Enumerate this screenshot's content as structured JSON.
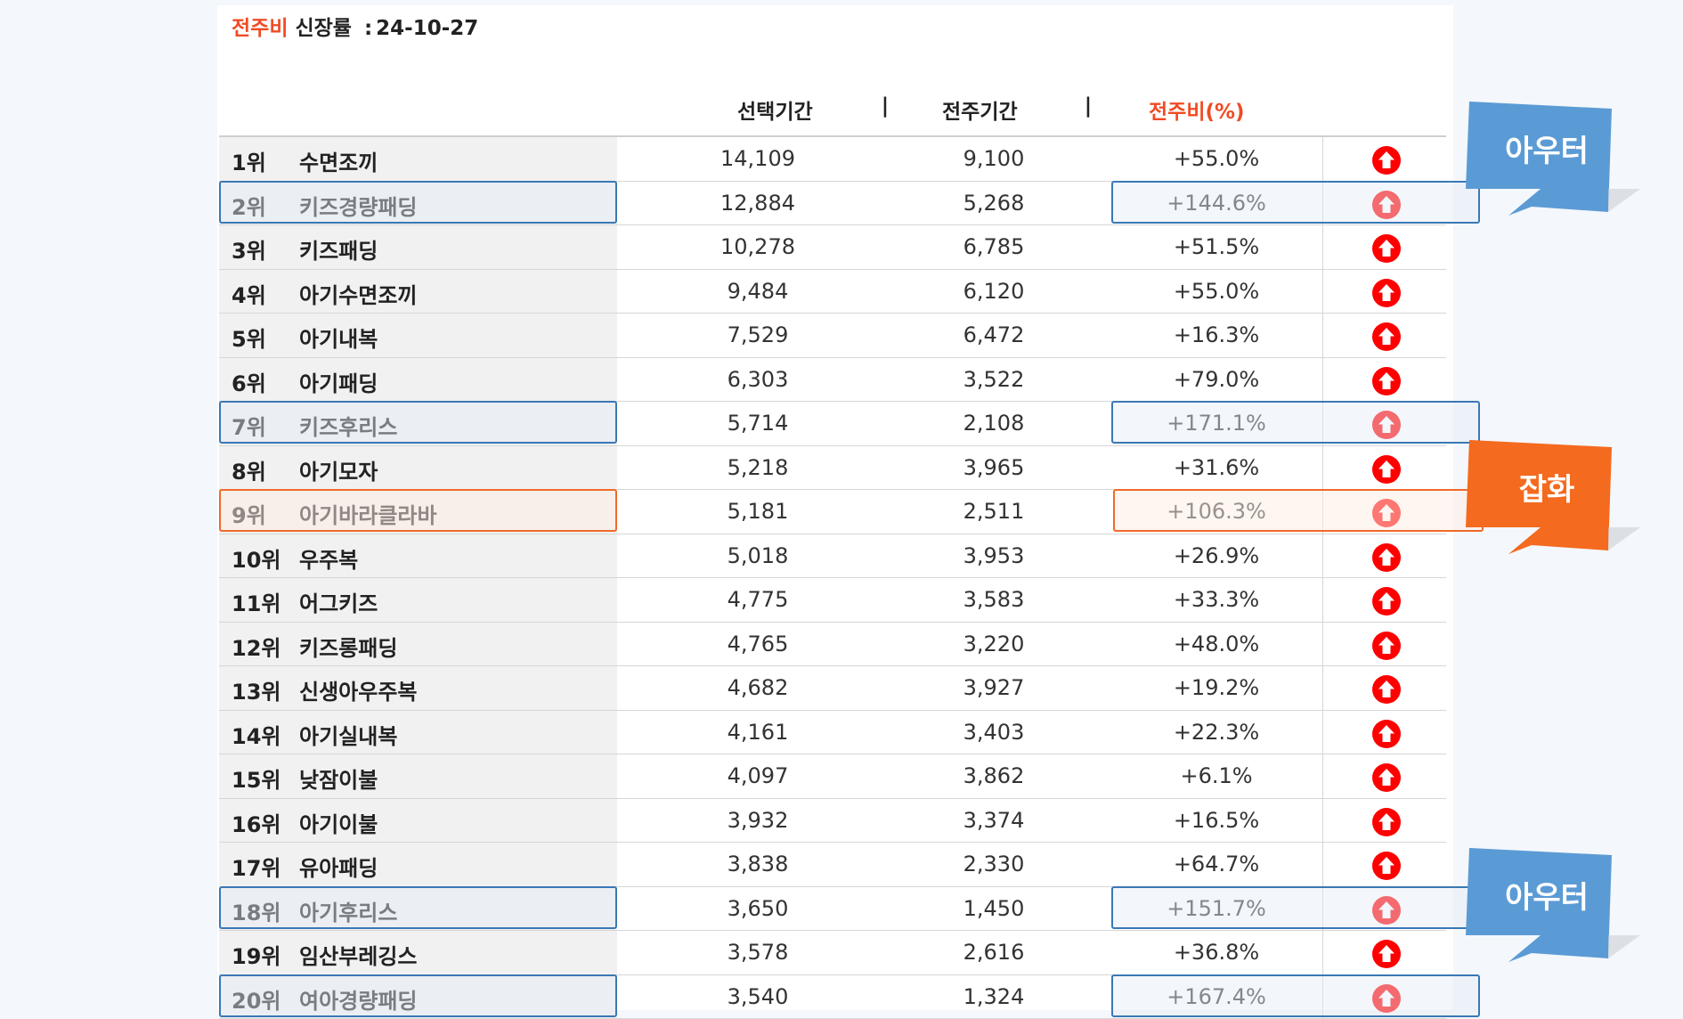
{
  "title": {
    "prefix": "전주비",
    "label": "신장률",
    "colon": ":",
    "date": "24-10-27"
  },
  "header": {
    "selected_period": "선택기간",
    "separator": "|",
    "previous_week": "전주기간",
    "ratio": "전주비(%)"
  },
  "colors": {
    "accent_red": "#f04b24",
    "blue_callout": "#5b9bd5",
    "orange_callout": "#f46a1f",
    "up_arrow": "#ff0000"
  },
  "rows": [
    {
      "rank": "1위",
      "keyword": "수면조끼",
      "selected": "14,109",
      "previous": "9,100",
      "ratio": "+55.0%",
      "trend_icon": "arrow-up-circle",
      "highlight": "none"
    },
    {
      "rank": "2위",
      "keyword": "키즈경량패딩",
      "selected": "12,884",
      "previous": "5,268",
      "ratio": "+144.6%",
      "trend_icon": "arrow-up-circle",
      "highlight": "blue"
    },
    {
      "rank": "3위",
      "keyword": "키즈패딩",
      "selected": "10,278",
      "previous": "6,785",
      "ratio": "+51.5%",
      "trend_icon": "arrow-up-circle",
      "highlight": "none"
    },
    {
      "rank": "4위",
      "keyword": "아기수면조끼",
      "selected": "9,484",
      "previous": "6,120",
      "ratio": "+55.0%",
      "trend_icon": "arrow-up-circle",
      "highlight": "none"
    },
    {
      "rank": "5위",
      "keyword": "아기내복",
      "selected": "7,529",
      "previous": "6,472",
      "ratio": "+16.3%",
      "trend_icon": "arrow-up-circle",
      "highlight": "none"
    },
    {
      "rank": "6위",
      "keyword": "아기패딩",
      "selected": "6,303",
      "previous": "3,522",
      "ratio": "+79.0%",
      "trend_icon": "arrow-up-circle",
      "highlight": "none"
    },
    {
      "rank": "7위",
      "keyword": "키즈후리스",
      "selected": "5,714",
      "previous": "2,108",
      "ratio": "+171.1%",
      "trend_icon": "arrow-up-circle",
      "highlight": "blue"
    },
    {
      "rank": "8위",
      "keyword": "아기모자",
      "selected": "5,218",
      "previous": "3,965",
      "ratio": "+31.6%",
      "trend_icon": "arrow-up-circle",
      "highlight": "none"
    },
    {
      "rank": "9위",
      "keyword": "아기바라클라바",
      "selected": "5,181",
      "previous": "2,511",
      "ratio": "+106.3%",
      "trend_icon": "arrow-up-circle",
      "highlight": "orange"
    },
    {
      "rank": "10위",
      "keyword": "우주복",
      "selected": "5,018",
      "previous": "3,953",
      "ratio": "+26.9%",
      "trend_icon": "arrow-up-circle",
      "highlight": "none"
    },
    {
      "rank": "11위",
      "keyword": "어그키즈",
      "selected": "4,775",
      "previous": "3,583",
      "ratio": "+33.3%",
      "trend_icon": "arrow-up-circle",
      "highlight": "none"
    },
    {
      "rank": "12위",
      "keyword": "키즈롱패딩",
      "selected": "4,765",
      "previous": "3,220",
      "ratio": "+48.0%",
      "trend_icon": "arrow-up-circle",
      "highlight": "none"
    },
    {
      "rank": "13위",
      "keyword": "신생아우주복",
      "selected": "4,682",
      "previous": "3,927",
      "ratio": "+19.2%",
      "trend_icon": "arrow-up-circle",
      "highlight": "none"
    },
    {
      "rank": "14위",
      "keyword": "아기실내복",
      "selected": "4,161",
      "previous": "3,403",
      "ratio": "+22.3%",
      "trend_icon": "arrow-up-circle",
      "highlight": "none"
    },
    {
      "rank": "15위",
      "keyword": "낮잠이불",
      "selected": "4,097",
      "previous": "3,862",
      "ratio": "+6.1%",
      "trend_icon": "arrow-up-circle",
      "highlight": "none"
    },
    {
      "rank": "16위",
      "keyword": "아기이불",
      "selected": "3,932",
      "previous": "3,374",
      "ratio": "+16.5%",
      "trend_icon": "arrow-up-circle",
      "highlight": "none"
    },
    {
      "rank": "17위",
      "keyword": "유아패딩",
      "selected": "3,838",
      "previous": "2,330",
      "ratio": "+64.7%",
      "trend_icon": "arrow-up-circle",
      "highlight": "none"
    },
    {
      "rank": "18위",
      "keyword": "아기후리스",
      "selected": "3,650",
      "previous": "1,450",
      "ratio": "+151.7%",
      "trend_icon": "arrow-up-circle",
      "highlight": "blue"
    },
    {
      "rank": "19위",
      "keyword": "임산부레깅스",
      "selected": "3,578",
      "previous": "2,616",
      "ratio": "+36.8%",
      "trend_icon": "arrow-up-circle",
      "highlight": "none"
    },
    {
      "rank": "20위",
      "keyword": "여아경량패딩",
      "selected": "3,540",
      "previous": "1,324",
      "ratio": "+167.4%",
      "trend_icon": "arrow-up-circle",
      "highlight": "blue"
    }
  ],
  "callouts": [
    {
      "label": "아우터",
      "color": "blue"
    },
    {
      "label": "잡화",
      "color": "orange"
    },
    {
      "label": "아우터",
      "color": "blue"
    }
  ]
}
